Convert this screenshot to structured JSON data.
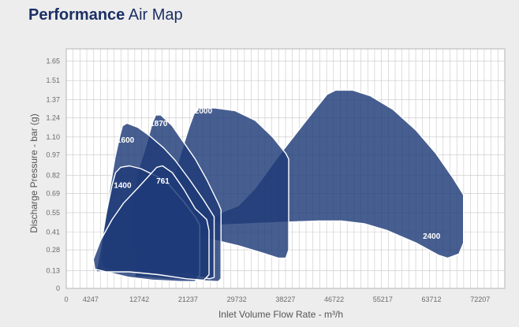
{
  "header": {
    "title_bold": "Performance",
    "title_light": "Air Map"
  },
  "chart_data": {
    "type": "area",
    "xlabel": "Inlet Volume Flow Rate - m³/h",
    "ylabel": "Discharge Pressure - bar (g)",
    "xlim": [
      0,
      76500
    ],
    "ylim": [
      0,
      1.74
    ],
    "x_ticks": [
      0,
      4247,
      12742,
      21237,
      29732,
      38227,
      46722,
      55217,
      63712,
      72207
    ],
    "x_tick_labels": [
      "0",
      "4247",
      "12742",
      "21237",
      "29732",
      "38227",
      "46722",
      "55217",
      "63712",
      "72207"
    ],
    "y_ticks": [
      0,
      0.13,
      0.28,
      0.41,
      0.55,
      0.69,
      0.82,
      0.97,
      1.1,
      1.24,
      1.37,
      1.51,
      1.65
    ],
    "y_tick_labels": [
      "0",
      "0.13",
      "0.28",
      "0.41",
      "0.55",
      "0.69",
      "0.82",
      "0.97",
      "1.10",
      "1.24",
      "1.37",
      "1.51",
      "1.65"
    ],
    "grid": true,
    "colors": {
      "fill": "#1f3a78",
      "edge": "#ffffff",
      "axis_text": "#6b6b6b",
      "title": "#1b2f63",
      "grid": "#c8c8c8"
    },
    "series": [
      {
        "name": "2400",
        "label_at": [
          62200,
          0.36
        ],
        "points": [
          [
            26000,
            0.52
          ],
          [
            27500,
            0.56
          ],
          [
            30000,
            0.6
          ],
          [
            33000,
            0.73
          ],
          [
            37000,
            0.96
          ],
          [
            40000,
            1.12
          ],
          [
            43000,
            1.28
          ],
          [
            45500,
            1.41
          ],
          [
            47000,
            1.44
          ],
          [
            50000,
            1.44
          ],
          [
            53000,
            1.4
          ],
          [
            57000,
            1.3
          ],
          [
            61000,
            1.15
          ],
          [
            64500,
            0.98
          ],
          [
            67500,
            0.8
          ],
          [
            69300,
            0.68
          ],
          [
            69300,
            0.33
          ],
          [
            68500,
            0.25
          ],
          [
            66500,
            0.22
          ],
          [
            65000,
            0.24
          ],
          [
            61000,
            0.33
          ],
          [
            56000,
            0.42
          ],
          [
            52000,
            0.47
          ],
          [
            48000,
            0.49
          ],
          [
            44000,
            0.49
          ],
          [
            38000,
            0.48
          ],
          [
            32000,
            0.47
          ],
          [
            27000,
            0.46
          ],
          [
            25900,
            0.48
          ]
        ]
      },
      {
        "name": "2000",
        "label_at": [
          22400,
          1.27
        ],
        "points": [
          [
            17500,
            0.6
          ],
          [
            19000,
            0.85
          ],
          [
            20500,
            1.05
          ],
          [
            21500,
            1.18
          ],
          [
            22300,
            1.27
          ],
          [
            23000,
            1.31
          ],
          [
            26000,
            1.31
          ],
          [
            29500,
            1.29
          ],
          [
            33000,
            1.22
          ],
          [
            36000,
            1.1
          ],
          [
            38300,
            0.98
          ],
          [
            38800,
            0.94
          ],
          [
            38800,
            0.28
          ],
          [
            38300,
            0.22
          ],
          [
            37000,
            0.22
          ],
          [
            34000,
            0.26
          ],
          [
            30000,
            0.31
          ],
          [
            26000,
            0.35
          ],
          [
            23000,
            0.38
          ],
          [
            20000,
            0.41
          ],
          [
            18000,
            0.43
          ]
        ]
      },
      {
        "name": "1870",
        "label_at": [
          14600,
          1.18
        ],
        "points": [
          [
            11500,
            0.6
          ],
          [
            12500,
            0.85
          ],
          [
            14000,
            1.05
          ],
          [
            15000,
            1.2
          ],
          [
            15600,
            1.26
          ],
          [
            16500,
            1.26
          ],
          [
            18500,
            1.18
          ],
          [
            20500,
            1.06
          ],
          [
            22500,
            0.94
          ],
          [
            24500,
            0.79
          ],
          [
            26500,
            0.62
          ],
          [
            27000,
            0.57
          ],
          [
            27000,
            0.07
          ],
          [
            26500,
            0.05
          ],
          [
            22000,
            0.06
          ],
          [
            17000,
            0.07
          ],
          [
            14000,
            0.08
          ],
          [
            12000,
            0.08
          ]
        ]
      },
      {
        "name": "1600",
        "label_at": [
          8800,
          1.06
        ],
        "points": [
          [
            6000,
            0.2
          ],
          [
            6500,
            0.4
          ],
          [
            7500,
            0.7
          ],
          [
            8500,
            0.95
          ],
          [
            9300,
            1.1
          ],
          [
            9800,
            1.18
          ],
          [
            10600,
            1.2
          ],
          [
            12500,
            1.17
          ],
          [
            14500,
            1.11
          ],
          [
            17000,
            1.02
          ],
          [
            19000,
            0.93
          ],
          [
            21500,
            0.79
          ],
          [
            24000,
            0.64
          ],
          [
            25800,
            0.52
          ],
          [
            25800,
            0.08
          ],
          [
            25000,
            0.07
          ],
          [
            21000,
            0.1
          ],
          [
            17000,
            0.1
          ],
          [
            13000,
            0.12
          ],
          [
            9000,
            0.12
          ],
          [
            6500,
            0.15
          ]
        ]
      },
      {
        "name": "1400",
        "label_at": [
          8300,
          0.73
        ],
        "points": [
          [
            5200,
            0.12
          ],
          [
            6000,
            0.3
          ],
          [
            7000,
            0.55
          ],
          [
            8000,
            0.75
          ],
          [
            8600,
            0.84
          ],
          [
            9500,
            0.88
          ],
          [
            11000,
            0.89
          ],
          [
            13000,
            0.87
          ],
          [
            16000,
            0.81
          ],
          [
            18000,
            0.75
          ],
          [
            20500,
            0.63
          ],
          [
            22500,
            0.52
          ],
          [
            23300,
            0.46
          ],
          [
            23300,
            0.1
          ],
          [
            22500,
            0.05
          ],
          [
            20000,
            0.05
          ],
          [
            15000,
            0.06
          ],
          [
            11000,
            0.08
          ],
          [
            7000,
            0.12
          ]
        ]
      },
      {
        "name": "761",
        "label_at": [
          15700,
          0.76
        ],
        "points": [
          [
            4700,
            0.21
          ],
          [
            6000,
            0.35
          ],
          [
            8000,
            0.5
          ],
          [
            10000,
            0.62
          ],
          [
            12500,
            0.73
          ],
          [
            14700,
            0.83
          ],
          [
            15800,
            0.88
          ],
          [
            16800,
            0.89
          ],
          [
            18500,
            0.84
          ],
          [
            20500,
            0.72
          ],
          [
            22500,
            0.58
          ],
          [
            24500,
            0.5
          ],
          [
            24900,
            0.42
          ],
          [
            24900,
            0.1
          ],
          [
            24000,
            0.06
          ],
          [
            21000,
            0.07
          ],
          [
            16000,
            0.1
          ],
          [
            11000,
            0.12
          ],
          [
            7000,
            0.12
          ],
          [
            5000,
            0.14
          ]
        ]
      }
    ]
  }
}
